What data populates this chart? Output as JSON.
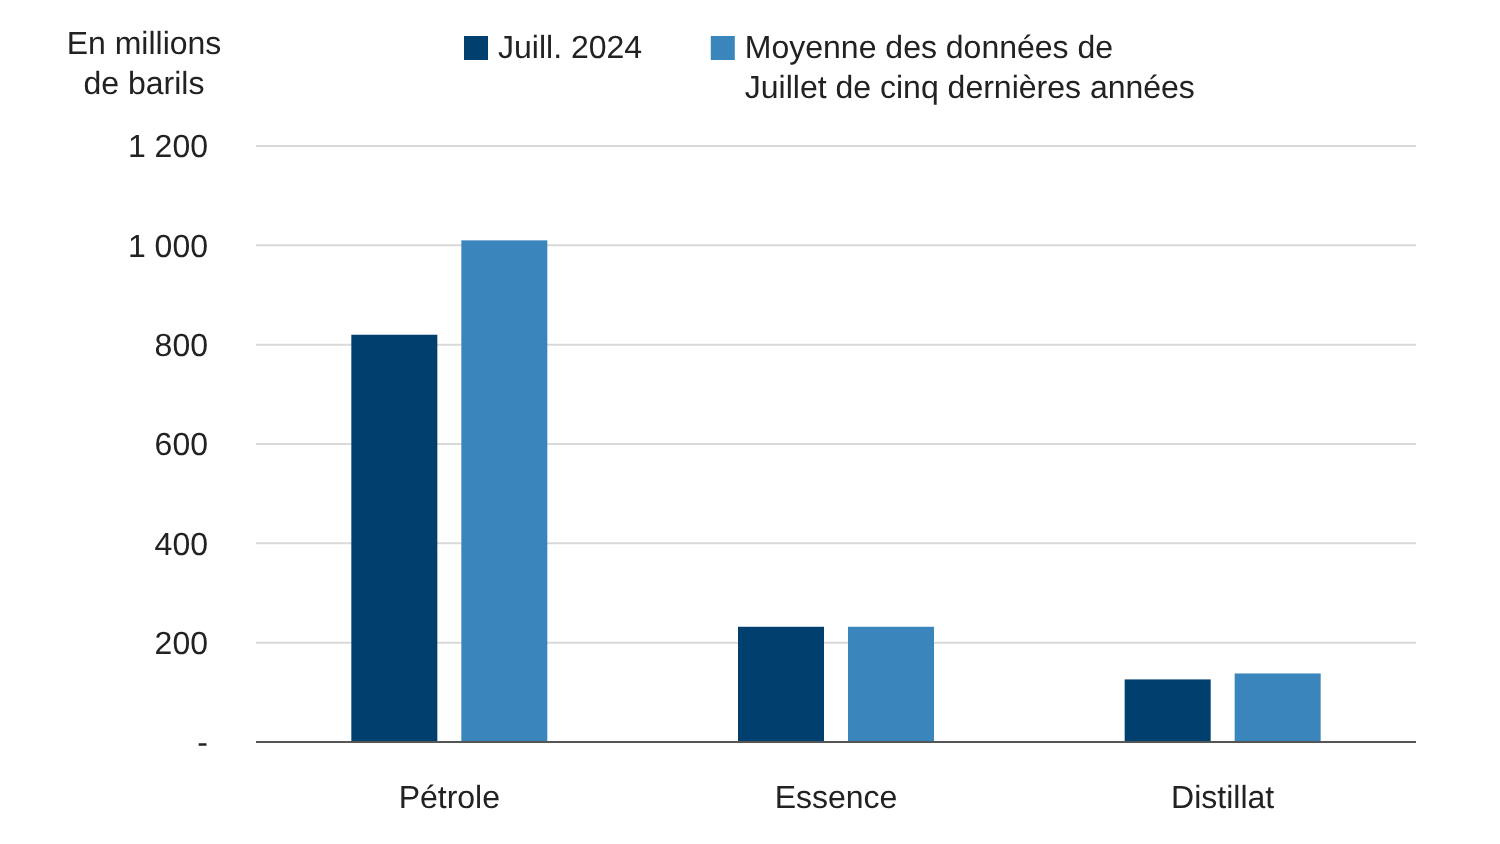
{
  "chart_data": {
    "type": "bar",
    "ylabel": "En millions\nde barils",
    "categories": [
      "Pétrole",
      "Essence",
      "Distillat"
    ],
    "series": [
      {
        "name": "Juill. 2024",
        "color": "#003f6e",
        "values": [
          820,
          232,
          126
        ]
      },
      {
        "name": "Moyenne des données de\nJuillet de cinq dernières années",
        "color": "#3a85bb",
        "values": [
          1010,
          232,
          138
        ]
      }
    ],
    "ylim": [
      0,
      1200
    ],
    "yticks": [
      {
        "value": 0,
        "label": "-"
      },
      200,
      400,
      600,
      800,
      {
        "value": 1000,
        "label": "1 000"
      },
      {
        "value": 1200,
        "label": "1 200"
      }
    ],
    "grid": "y",
    "legend": "top"
  }
}
